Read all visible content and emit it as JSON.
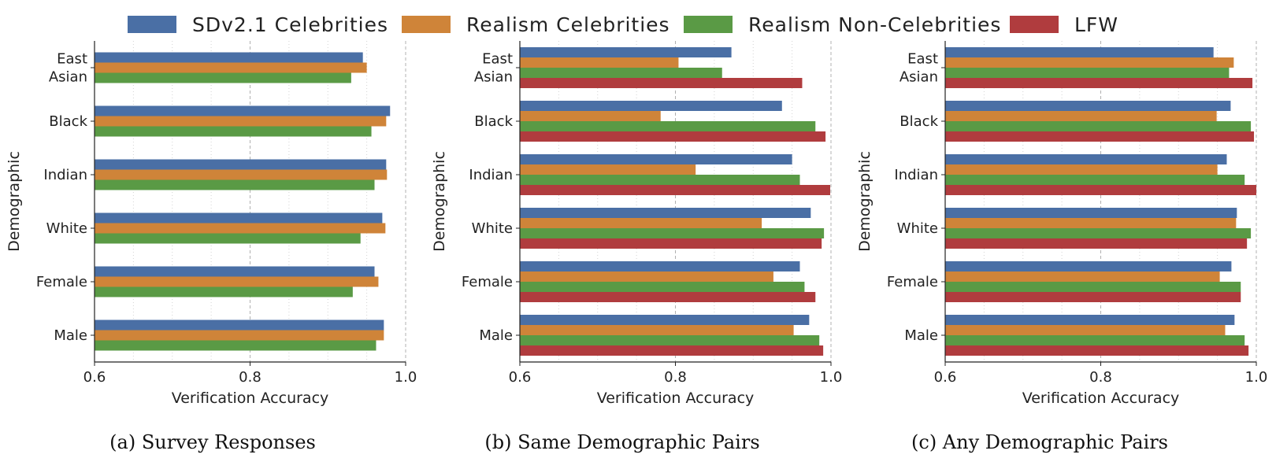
{
  "legend": [
    {
      "label": "SDv2.1 Celebrities",
      "color": "#4a6fa5"
    },
    {
      "label": "Realism Celebrities",
      "color": "#cf8439"
    },
    {
      "label": "Realism Non-Celebrities",
      "color": "#5a9a45"
    },
    {
      "label": "LFW",
      "color": "#b03c3e"
    }
  ],
  "chart_data": [
    {
      "type": "bar",
      "orientation": "horizontal",
      "caption": "(a) Survey Responses",
      "xlabel": "Verification Accuracy",
      "ylabel": "Demographic",
      "xlim": [
        0.6,
        1.0
      ],
      "xticks": [
        "0.6",
        "0.8",
        "1.0"
      ],
      "grid": "x",
      "categories": [
        [
          "East",
          "Asian"
        ],
        [
          "Black"
        ],
        [
          "Indian"
        ],
        [
          "White"
        ],
        [
          "Female"
        ],
        [
          "Male"
        ]
      ],
      "series": [
        {
          "name": "SDv2.1 Celebrities",
          "values": [
            0.945,
            0.98,
            0.975,
            0.97,
            0.96,
            0.972
          ]
        },
        {
          "name": "Realism Celebrities",
          "values": [
            0.95,
            0.975,
            0.976,
            0.974,
            0.965,
            0.972
          ]
        },
        {
          "name": "Realism Non-Celebrities",
          "values": [
            0.93,
            0.956,
            0.96,
            0.942,
            0.932,
            0.962
          ]
        }
      ]
    },
    {
      "type": "bar",
      "orientation": "horizontal",
      "caption": "(b) Same Demographic Pairs",
      "xlabel": "Verification Accuracy",
      "ylabel": "Demographic",
      "xlim": [
        0.6,
        1.0
      ],
      "xticks": [
        "0.6",
        "0.8",
        "1.0"
      ],
      "grid": "x",
      "categories": [
        [
          "East",
          "Asian"
        ],
        [
          "Black"
        ],
        [
          "Indian"
        ],
        [
          "White"
        ],
        [
          "Female"
        ],
        [
          "Male"
        ]
      ],
      "series": [
        {
          "name": "SDv2.1 Celebrities",
          "values": [
            0.872,
            0.937,
            0.95,
            0.974,
            0.96,
            0.972
          ]
        },
        {
          "name": "Realism Celebrities",
          "values": [
            0.804,
            0.781,
            0.826,
            0.911,
            0.926,
            0.952
          ]
        },
        {
          "name": "Realism Non-Celebrities",
          "values": [
            0.86,
            0.98,
            0.96,
            0.991,
            0.966,
            0.985
          ]
        },
        {
          "name": "LFW",
          "values": [
            0.963,
            0.993,
            0.999,
            0.988,
            0.98,
            0.99
          ]
        }
      ]
    },
    {
      "type": "bar",
      "orientation": "horizontal",
      "caption": "(c) Any Demographic Pairs",
      "xlabel": "Verification Accuracy",
      "ylabel": "Demographic",
      "xlim": [
        0.6,
        1.0
      ],
      "xticks": [
        "0.6",
        "0.8",
        "1.0"
      ],
      "grid": "x",
      "categories": [
        [
          "East",
          "Asian"
        ],
        [
          "Black"
        ],
        [
          "Indian"
        ],
        [
          "White"
        ],
        [
          "Female"
        ],
        [
          "Male"
        ]
      ],
      "series": [
        {
          "name": "SDv2.1 Celebrities",
          "values": [
            0.945,
            0.967,
            0.962,
            0.975,
            0.968,
            0.972
          ]
        },
        {
          "name": "Realism Celebrities",
          "values": [
            0.971,
            0.949,
            0.95,
            0.974,
            0.953,
            0.96
          ]
        },
        {
          "name": "Realism Non-Celebrities",
          "values": [
            0.965,
            0.993,
            0.985,
            0.993,
            0.98,
            0.985
          ]
        },
        {
          "name": "LFW",
          "values": [
            0.995,
            0.997,
            1.0,
            0.988,
            0.98,
            0.99
          ]
        }
      ]
    }
  ]
}
